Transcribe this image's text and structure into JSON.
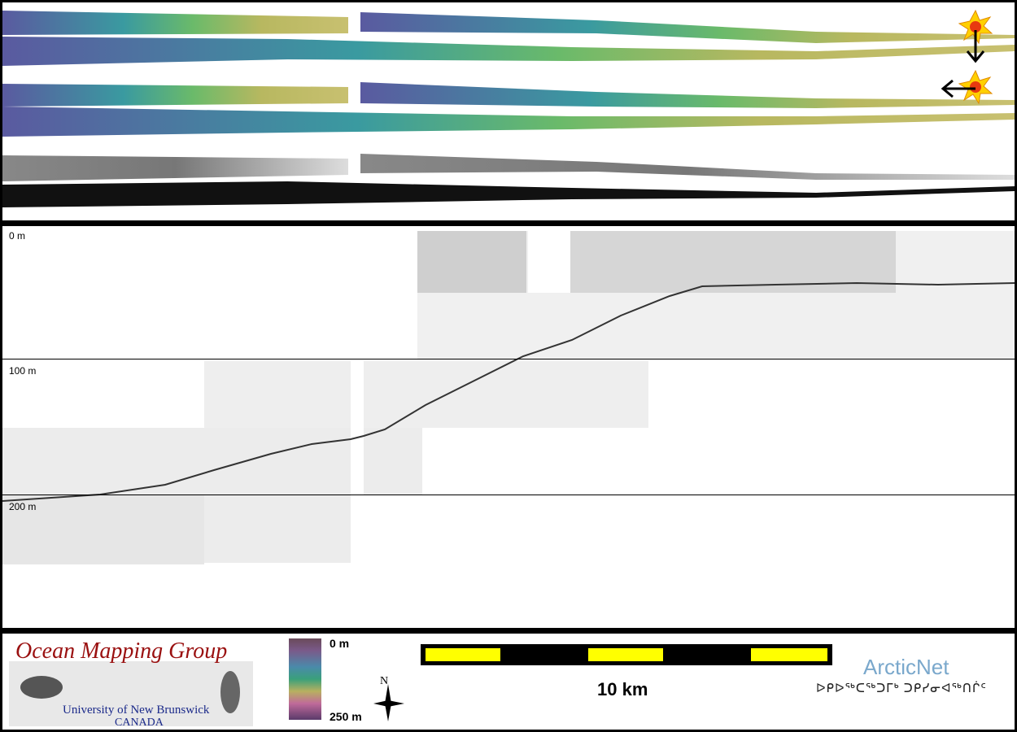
{
  "profile": {
    "depth_labels": [
      "0 m",
      "100 m",
      "200 m"
    ]
  },
  "legend": {
    "org_title": "Ocean Mapping Group",
    "org_subtitle": "University of New Brunswick",
    "org_country": "CANADA",
    "colorbar_top": "0 m",
    "colorbar_bottom": "250 m",
    "scale_label": "10 km",
    "partner": "ArcticNet",
    "partner_syllabics": "ᐅᑭᐅᖅᑕᖅᑐᒥᒃ ᑐᑭᓯᓂᐊᖅᑎᒌᑦ",
    "north_label": "N"
  }
}
